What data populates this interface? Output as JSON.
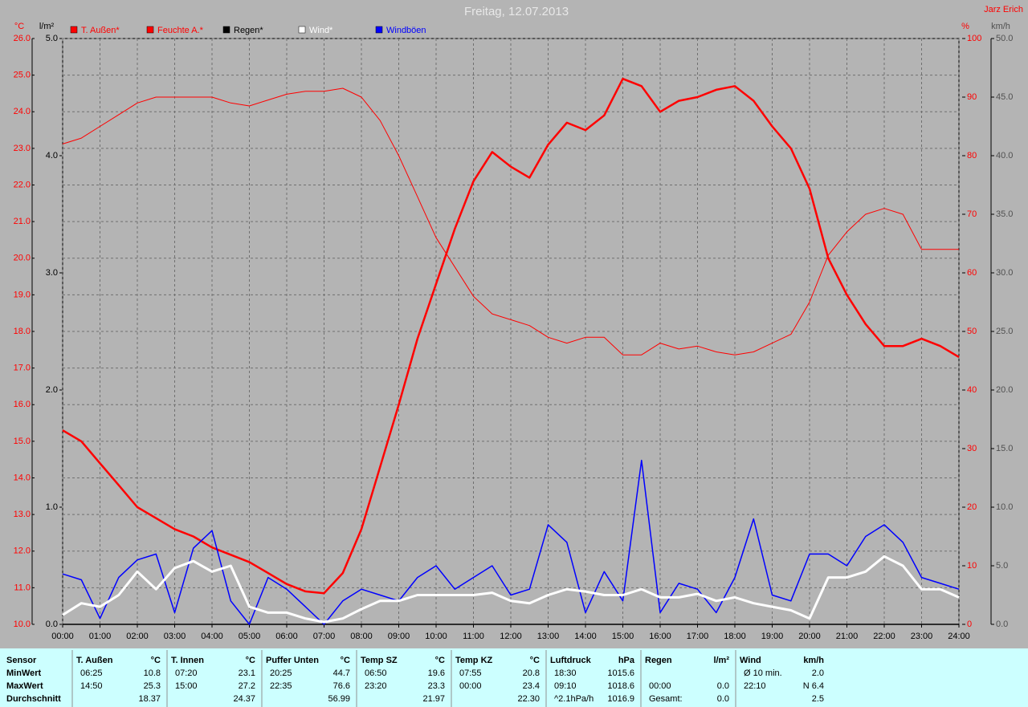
{
  "chart_data": {
    "type": "line",
    "title": "Freitag, 12.07.2013",
    "author": "Jarz Erich",
    "x": [
      0,
      0.5,
      1,
      1.5,
      2,
      2.5,
      3,
      3.5,
      4,
      4.5,
      5,
      5.5,
      6,
      6.5,
      7,
      7.5,
      8,
      8.5,
      9,
      9.5,
      10,
      10.5,
      11,
      11.5,
      12,
      12.5,
      13,
      13.5,
      14,
      14.5,
      15,
      15.5,
      16,
      16.5,
      17,
      17.5,
      18,
      18.5,
      19,
      19.5,
      20,
      20.5,
      21,
      21.5,
      22,
      22.5,
      23,
      23.5,
      24
    ],
    "xlim": [
      0,
      24
    ],
    "xticks": [
      {
        "value": 0,
        "label": "00:00"
      },
      {
        "value": 1,
        "label": "01:00"
      },
      {
        "value": 2,
        "label": "02:00"
      },
      {
        "value": 3,
        "label": "03:00"
      },
      {
        "value": 4,
        "label": "04:00"
      },
      {
        "value": 5,
        "label": "05:00"
      },
      {
        "value": 6,
        "label": "06:00"
      },
      {
        "value": 7,
        "label": "07:00"
      },
      {
        "value": 8,
        "label": "08:00"
      },
      {
        "value": 9,
        "label": "09:00"
      },
      {
        "value": 10,
        "label": "10:00"
      },
      {
        "value": 11,
        "label": "11:00"
      },
      {
        "value": 12,
        "label": "12:00"
      },
      {
        "value": 13,
        "label": "13:00"
      },
      {
        "value": 14,
        "label": "14:00"
      },
      {
        "value": 15,
        "label": "15:00"
      },
      {
        "value": 16,
        "label": "16:00"
      },
      {
        "value": 17,
        "label": "17:00"
      },
      {
        "value": 18,
        "label": "18:00"
      },
      {
        "value": 19,
        "label": "19:00"
      },
      {
        "value": 20,
        "label": "20:00"
      },
      {
        "value": 21,
        "label": "21:00"
      },
      {
        "value": 22,
        "label": "22:00"
      },
      {
        "value": 23,
        "label": "23:00"
      },
      {
        "value": 24,
        "label": "24:00"
      }
    ],
    "grid": true,
    "axes": {
      "temp": {
        "label": "°C",
        "color": "#ff0000",
        "lim": [
          10,
          26
        ],
        "ticks": [
          {
            "value": 10,
            "label": "10.0"
          },
          {
            "value": 11,
            "label": "11.0"
          },
          {
            "value": 12,
            "label": "12.0"
          },
          {
            "value": 13,
            "label": "13.0"
          },
          {
            "value": 14,
            "label": "14.0"
          },
          {
            "value": 15,
            "label": "15.0"
          },
          {
            "value": 16,
            "label": "16.0"
          },
          {
            "value": 17,
            "label": "17.0"
          },
          {
            "value": 18,
            "label": "18.0"
          },
          {
            "value": 19,
            "label": "19.0"
          },
          {
            "value": 20,
            "label": "20.0"
          },
          {
            "value": 21,
            "label": "21.0"
          },
          {
            "value": 22,
            "label": "22.0"
          },
          {
            "value": 23,
            "label": "23.0"
          },
          {
            "value": 24,
            "label": "24.0"
          },
          {
            "value": 25,
            "label": "25.0"
          },
          {
            "value": 26,
            "label": "26.0"
          }
        ]
      },
      "rain": {
        "label": "l/m²",
        "color": "#000000",
        "lim": [
          0,
          5
        ],
        "ticks": [
          {
            "value": 0,
            "label": "0.0"
          },
          {
            "value": 1,
            "label": "1.0"
          },
          {
            "value": 2,
            "label": "2.0"
          },
          {
            "value": 3,
            "label": "3.0"
          },
          {
            "value": 4,
            "label": "4.0"
          },
          {
            "value": 5,
            "label": "5.0"
          }
        ]
      },
      "hum": {
        "label": "%",
        "color": "#ff0000",
        "lim": [
          0,
          100
        ],
        "ticks": [
          0,
          10,
          20,
          30,
          40,
          50,
          60,
          70,
          80,
          90,
          100
        ]
      },
      "wind": {
        "label": "km/h",
        "color": "#505050",
        "lim": [
          0,
          50
        ],
        "ticks": [
          {
            "value": 0,
            "label": "0.0"
          },
          {
            "value": 5,
            "label": "5.0"
          },
          {
            "value": 10,
            "label": "10.0"
          },
          {
            "value": 15,
            "label": "15.0"
          },
          {
            "value": 20,
            "label": "20.0"
          },
          {
            "value": 25,
            "label": "25.0"
          },
          {
            "value": 30,
            "label": "30.0"
          },
          {
            "value": 35,
            "label": "35.0"
          },
          {
            "value": 40,
            "label": "40.0"
          },
          {
            "value": 45,
            "label": "45.0"
          },
          {
            "value": 50,
            "label": "50.0"
          }
        ]
      }
    },
    "series": [
      {
        "name": "T. Außen*",
        "color": "#ff0000",
        "axis": "temp",
        "width": 2.5,
        "values": [
          15.3,
          15.0,
          14.4,
          13.8,
          13.2,
          12.9,
          12.6,
          12.4,
          12.1,
          11.9,
          11.7,
          11.4,
          11.1,
          10.9,
          10.85,
          11.4,
          12.6,
          14.3,
          16.0,
          17.8,
          19.3,
          20.8,
          22.1,
          22.9,
          22.5,
          22.2,
          23.1,
          23.7,
          23.5,
          23.9,
          24.9,
          24.7,
          24.0,
          24.3,
          24.4,
          24.6,
          24.7,
          24.3,
          23.6,
          23.0,
          21.9,
          20.0,
          19.0,
          18.2,
          17.6,
          17.6,
          17.8,
          17.6,
          17.3
        ]
      },
      {
        "name": "Feuchte A.*",
        "color": "#ff0000",
        "axis": "hum",
        "width": 1,
        "values": [
          82,
          83,
          85,
          87,
          89,
          90,
          90,
          90,
          90,
          89,
          88.5,
          89.5,
          90.5,
          91,
          91,
          91.5,
          90,
          86,
          80,
          73,
          66,
          61,
          56,
          53,
          52,
          51,
          49,
          48,
          49,
          49,
          46,
          46,
          48,
          47,
          47.5,
          46.5,
          46,
          46.5,
          48,
          49.5,
          55,
          63,
          67,
          70,
          71,
          70,
          64,
          64,
          64
        ]
      },
      {
        "name": "Regen*",
        "color": "#000000",
        "axis": "rain",
        "width": 1.5,
        "values": [
          0,
          0,
          0,
          0,
          0,
          0,
          0,
          0,
          0,
          0,
          0,
          0,
          0,
          0,
          0,
          0,
          0,
          0,
          0,
          0,
          0,
          0,
          0,
          0,
          0,
          0,
          0,
          0,
          0,
          0,
          0,
          0,
          0,
          0,
          0,
          0,
          0,
          0,
          0,
          0,
          0,
          0,
          0,
          0,
          0,
          0,
          0,
          0,
          0
        ]
      },
      {
        "name": "Wind*",
        "color": "#ffffff",
        "axis": "wind",
        "width": 3,
        "values": [
          0.8,
          1.8,
          1.5,
          2.5,
          4.5,
          3,
          4.8,
          5.4,
          4.5,
          5,
          1.5,
          1,
          1,
          0.5,
          0.2,
          0.5,
          1.3,
          2,
          2,
          2.5,
          2.5,
          2.5,
          2.5,
          2.7,
          2,
          1.8,
          2.5,
          3,
          2.8,
          2.5,
          2.5,
          3,
          2.3,
          2.3,
          2.6,
          2,
          2.3,
          1.8,
          1.5,
          1.2,
          0.5,
          4,
          4,
          4.5,
          5.8,
          5,
          3,
          3,
          2.3
        ]
      },
      {
        "name": "Windböen",
        "color": "#0000ff",
        "axis": "wind",
        "width": 1.5,
        "values": [
          4.3,
          3.8,
          0.5,
          4,
          5.5,
          6,
          1,
          6.5,
          8,
          2,
          0,
          4,
          3,
          1.5,
          0,
          2,
          3,
          2.5,
          2,
          4,
          5,
          3,
          4,
          5,
          2.5,
          3,
          8.5,
          7,
          1,
          4.5,
          2,
          14,
          1,
          3.5,
          3,
          1,
          4,
          9,
          2.5,
          2,
          6,
          6,
          5,
          7.5,
          8.5,
          7,
          4,
          3.5,
          3
        ]
      }
    ]
  },
  "table": {
    "row_labels": [
      "Sensor",
      "MinWert",
      "MaxWert",
      "Durchschnitt"
    ],
    "groups": [
      {
        "name": "T. Außen",
        "unit": "°C",
        "rows": [
          [
            "06:25",
            "10.8"
          ],
          [
            "14:50",
            "25.3"
          ],
          [
            null,
            "18.37"
          ]
        ]
      },
      {
        "name": "T. Innen",
        "unit": "°C",
        "rows": [
          [
            "07:20",
            "23.1"
          ],
          [
            "15:00",
            "27.2"
          ],
          [
            null,
            "24.37"
          ]
        ]
      },
      {
        "name": "Puffer Unten",
        "unit": "°C",
        "rows": [
          [
            "20:25",
            "44.7"
          ],
          [
            "22:35",
            "76.6"
          ],
          [
            null,
            "56.99"
          ]
        ]
      },
      {
        "name": "Temp SZ",
        "unit": "°C",
        "rows": [
          [
            "06:50",
            "19.6"
          ],
          [
            "23:20",
            "23.3"
          ],
          [
            null,
            "21.97"
          ]
        ]
      },
      {
        "name": "Temp KZ",
        "unit": "°C",
        "rows": [
          [
            "07:55",
            "20.8"
          ],
          [
            "00:00",
            "23.4"
          ],
          [
            null,
            "22.30"
          ]
        ]
      },
      {
        "name": "Luftdruck",
        "unit": "hPa",
        "rows": [
          [
            "18:30",
            "1015.6"
          ],
          [
            "09:10",
            "1018.6"
          ],
          [
            "^2.1hPa/h",
            "1016.9"
          ]
        ]
      },
      {
        "name": "Regen",
        "unit": "l/m²",
        "rows": [
          [
            null,
            null
          ],
          [
            "00:00",
            "0.0"
          ],
          [
            "Gesamt:",
            "0.0"
          ]
        ]
      },
      {
        "name": "Wind",
        "unit": "km/h",
        "rows": [
          [
            "Ø 10 min.",
            "2.0"
          ],
          [
            "22:10",
            "N 6.4"
          ],
          [
            null,
            "2.5"
          ]
        ]
      }
    ]
  }
}
